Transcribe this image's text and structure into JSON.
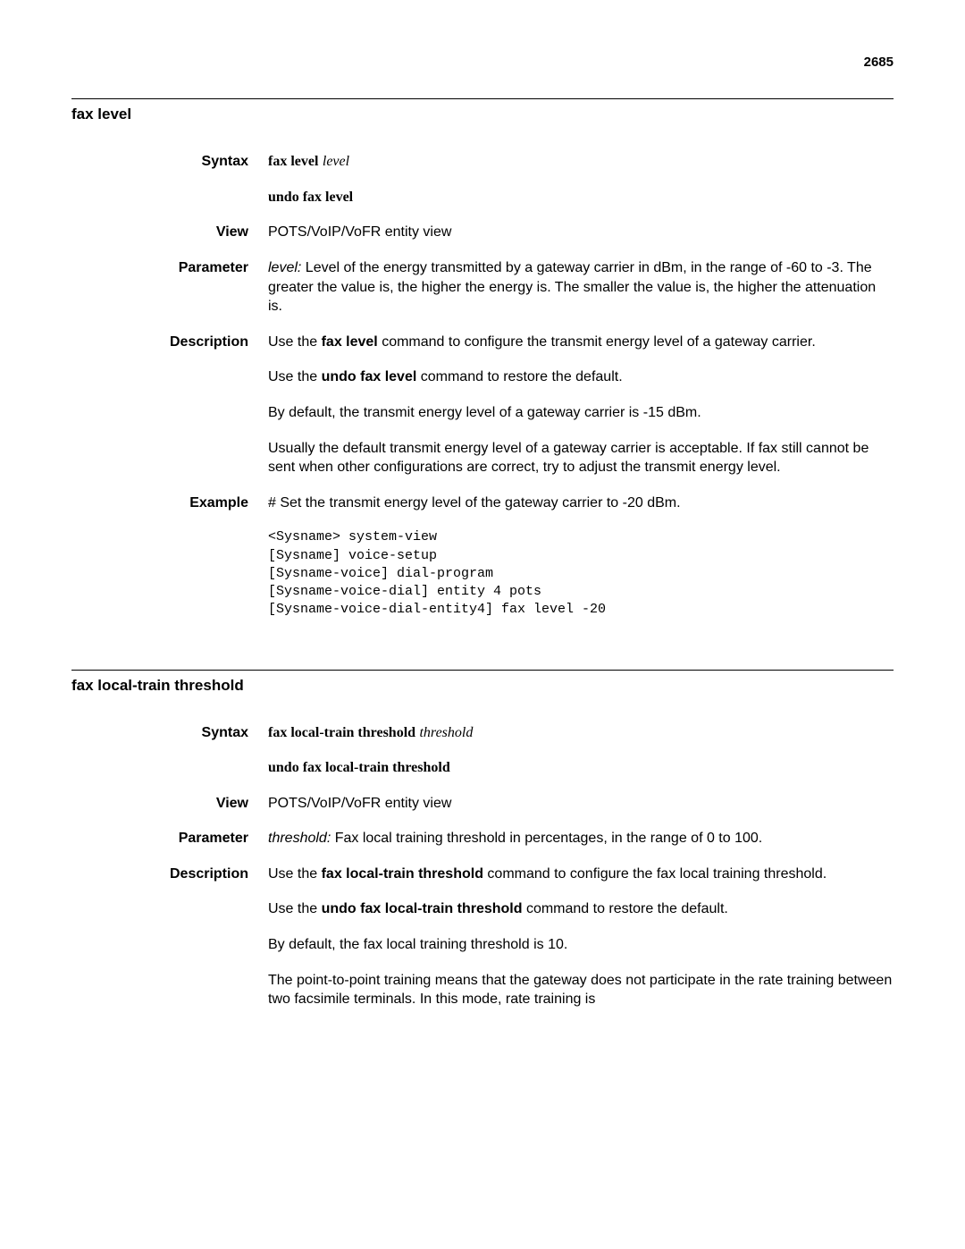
{
  "page_number": "2685",
  "sections": [
    {
      "title": "fax level",
      "rows": {
        "syntax": {
          "label": "Syntax",
          "line1_bold": "fax level",
          "line1_italic": "level",
          "line2_bold": "undo fax level"
        },
        "view": {
          "label": "View",
          "text": "POTS/VoIP/VoFR entity view"
        },
        "parameter": {
          "label": "Parameter",
          "italic": "level:",
          "text": " Level of the energy transmitted by a gateway carrier in dBm, in the range of -60 to -3. The greater the value is, the higher the energy is. The smaller the value is, the higher the attenuation is."
        },
        "description": {
          "label": "Description",
          "p1_pre": "Use the ",
          "p1_bold": "fax level",
          "p1_post": " command to configure the transmit energy level of a gateway carrier.",
          "p2_pre": "Use the ",
          "p2_bold": "undo fax level",
          "p2_post": " command to restore the default.",
          "p3": "By default, the transmit energy level of a gateway carrier is -15 dBm.",
          "p4": "Usually the default transmit energy level of a gateway carrier is acceptable. If fax still cannot be sent when other configurations are correct, try to adjust the transmit energy level."
        },
        "example": {
          "label": "Example",
          "intro": "# Set the transmit energy level of the gateway carrier to -20 dBm.",
          "code": "<Sysname> system-view\n[Sysname] voice-setup\n[Sysname-voice] dial-program\n[Sysname-voice-dial] entity 4 pots\n[Sysname-voice-dial-entity4] fax level -20"
        }
      }
    },
    {
      "title": "fax local-train threshold",
      "rows": {
        "syntax": {
          "label": "Syntax",
          "line1_bold": "fax local-train threshold",
          "line1_italic": "threshold",
          "line2_bold": "undo fax local-train threshold"
        },
        "view": {
          "label": "View",
          "text": "POTS/VoIP/VoFR entity view"
        },
        "parameter": {
          "label": "Parameter",
          "italic": "threshold:",
          "text": " Fax local training threshold in percentages, in the range of 0 to 100."
        },
        "description": {
          "label": "Description",
          "p1_pre": "Use the ",
          "p1_bold": "fax local-train threshold",
          "p1_post": " command to configure the fax local training threshold.",
          "p2_pre": "Use the ",
          "p2_bold": "undo fax local-train threshold",
          "p2_post": " command to restore the default.",
          "p3": "By default, the fax local training threshold is 10.",
          "p4": "The point-to-point training means that the gateway does not participate in the rate training between two facsimile terminals. In this mode, rate training is"
        }
      }
    }
  ]
}
